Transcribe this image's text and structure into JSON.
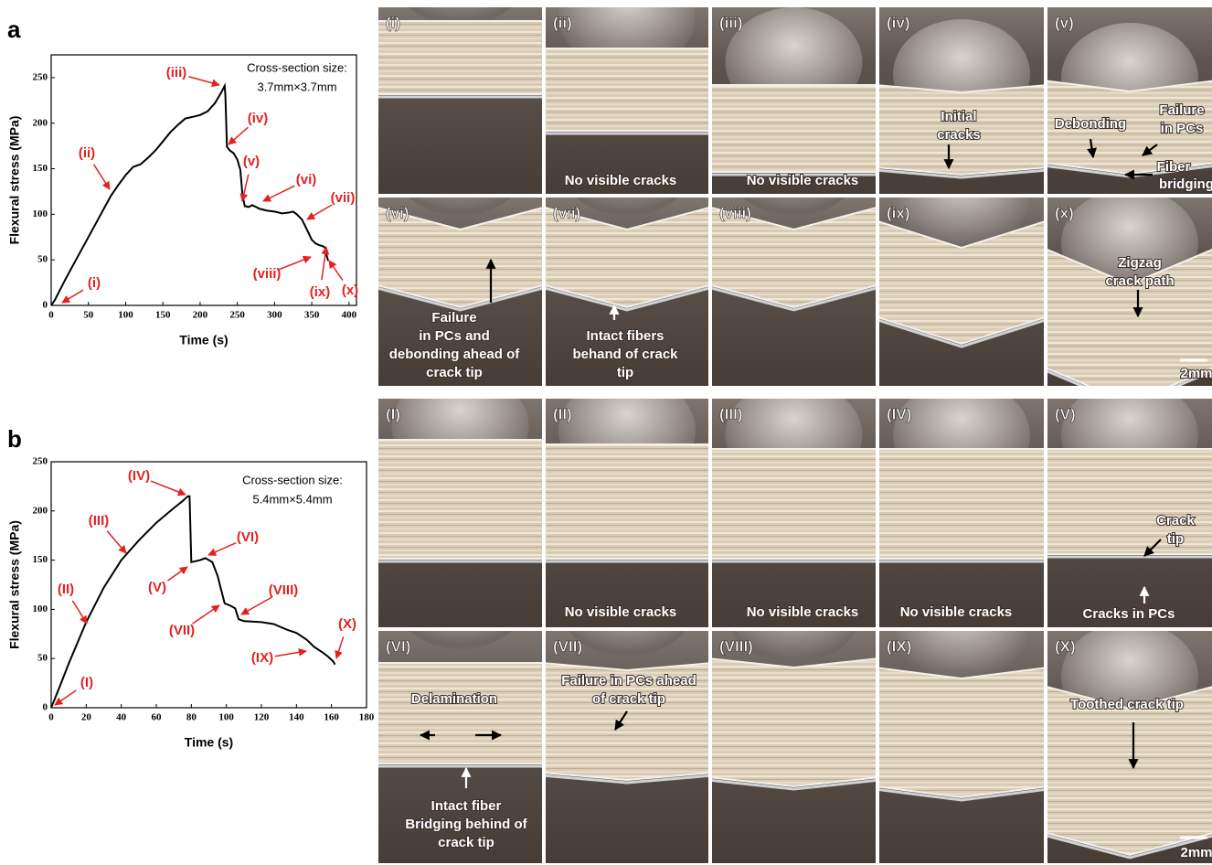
{
  "figure_labels": [
    "a",
    "b"
  ],
  "chart_data": [
    {
      "type": "line",
      "x_label": "Time (s)",
      "y_label": "Flexural stress (MPa)",
      "cross_section": [
        "Cross-section size:",
        "3.7mm×3.7mm"
      ],
      "annotations": [
        "(i)",
        "(ii)",
        "(iii)",
        "(iv)",
        "(v)",
        "(vi)",
        "(vii)",
        "(viii)",
        "(ix)",
        "(x)"
      ],
      "xlim": [
        0,
        410
      ],
      "ylim": [
        0,
        275
      ],
      "xticks": [
        0,
        50,
        100,
        150,
        200,
        250,
        300,
        350,
        400
      ],
      "yticks": [
        0,
        50,
        100,
        150,
        200,
        250
      ],
      "x": [
        0,
        5,
        10,
        20,
        30,
        40,
        50,
        60,
        70,
        80,
        90,
        100,
        110,
        120,
        130,
        140,
        150,
        160,
        170,
        180,
        190,
        200,
        210,
        220,
        228,
        233,
        234,
        236,
        240,
        245,
        250,
        254,
        257,
        260,
        265,
        270,
        280,
        290,
        300,
        310,
        320,
        325,
        330,
        337,
        343,
        350,
        355,
        360,
        365,
        368,
        370,
        372
      ],
      "series": [
        {
          "color": "#000000",
          "values": [
            0,
            6,
            14,
            30,
            45,
            60,
            75,
            90,
            105,
            120,
            132,
            143,
            152,
            155,
            162,
            170,
            180,
            190,
            198,
            205,
            207,
            209,
            213,
            222,
            233,
            241,
            230,
            174,
            170,
            167,
            160,
            149,
            120,
            109,
            108,
            110,
            106,
            104,
            103,
            101,
            102,
            103,
            100,
            94,
            84,
            72,
            68,
            66,
            65,
            63,
            55,
            49
          ]
        }
      ]
    },
    {
      "type": "line",
      "x_label": "Time (s)",
      "y_label": "Flexural stress (MPa)",
      "cross_section": [
        "Cross-section size:",
        "5.4mm×5.4mm"
      ],
      "annotations": [
        "(I)",
        "(II)",
        "(III)",
        "(IV)",
        "(V)",
        "(VI)",
        "(VII)",
        "(VIII)",
        "(IX)",
        "(X)"
      ],
      "xlim": [
        0,
        180
      ],
      "ylim": [
        0,
        250
      ],
      "xticks": [
        0,
        20,
        40,
        60,
        80,
        100,
        120,
        140,
        160,
        180
      ],
      "yticks": [
        0,
        50,
        100,
        150,
        200,
        250
      ],
      "x": [
        0,
        5,
        10,
        20,
        30,
        40,
        50,
        60,
        70,
        75,
        78,
        79,
        80,
        85,
        88,
        92,
        95,
        97,
        99,
        102,
        105,
        107,
        110,
        120,
        127,
        135,
        140,
        146,
        150,
        155,
        158,
        161,
        162
      ],
      "series": [
        {
          "color": "#000000",
          "values": [
            0,
            22,
            45,
            87,
            122,
            150,
            170,
            188,
            203,
            210,
            215,
            215,
            148,
            150,
            152,
            148,
            134,
            120,
            106,
            104,
            101,
            90,
            88,
            87,
            85,
            79,
            76,
            69,
            62,
            56,
            52,
            47,
            44
          ]
        }
      ]
    }
  ],
  "panels_a": [
    {
      "label": "(i)"
    },
    {
      "label": "(ii)",
      "notes": [
        "No visible cracks"
      ]
    },
    {
      "label": "(iii)",
      "notes": [
        "No visible cracks"
      ]
    },
    {
      "label": "(iv)",
      "notes": [
        "Initial",
        "cracks"
      ]
    },
    {
      "label": "(v)",
      "notes": [
        "Failure",
        "in PCs",
        "Debonding",
        "Fiber",
        "bridging"
      ]
    },
    {
      "label": "(vi)",
      "notes": [
        "Failure",
        "in PCs and",
        "debonding ahead of",
        "crack tip"
      ]
    },
    {
      "label": "(vii)",
      "notes": [
        "Intact fibers",
        "behand of crack",
        "tip"
      ]
    },
    {
      "label": "(viii)"
    },
    {
      "label": "(ix)"
    },
    {
      "label": "(x)",
      "notes": [
        "Zigzag",
        "crack path",
        "2mm"
      ]
    }
  ],
  "panels_b": [
    {
      "label": "(I)"
    },
    {
      "label": "(II)",
      "notes": [
        "No visible cracks"
      ]
    },
    {
      "label": "(III)",
      "notes": [
        "No visible cracks"
      ]
    },
    {
      "label": "(IV)",
      "notes": [
        "No visible cracks"
      ]
    },
    {
      "label": "(V)",
      "notes": [
        "Crack",
        "tip",
        "Cracks in PCs"
      ]
    },
    {
      "label": "(VI)",
      "notes": [
        "Delamination",
        "Intact fiber",
        "Bridging behind of",
        "crack tip"
      ]
    },
    {
      "label": "(VII)",
      "notes": [
        "Failure in PCs ahead",
        "of crack tip"
      ]
    },
    {
      "label": "(VIII)"
    },
    {
      "label": "(IX)"
    },
    {
      "label": "(X)",
      "notes": [
        "Toothed crack tip",
        "2mm"
      ]
    }
  ]
}
